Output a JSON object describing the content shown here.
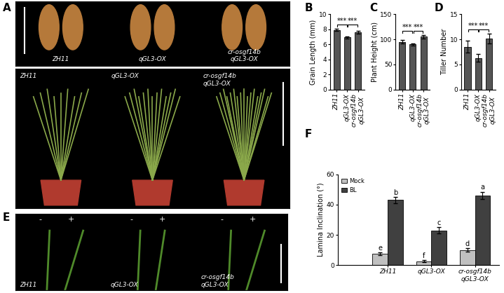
{
  "chart_data": [
    {
      "type": "bar",
      "panel": "B",
      "y_label": "Grain Length (mm)",
      "categories": [
        "ZH11",
        "qGL3-OX",
        "cr-osgf14b\nqGL3-OX"
      ],
      "values": [
        7.9,
        6.9,
        7.6
      ],
      "errors": [
        0.15,
        0.15,
        0.15
      ],
      "color": "#555555",
      "ylim": [
        0,
        10
      ],
      "yticks": [
        0,
        2,
        4,
        6,
        8,
        10
      ],
      "significance": [
        {
          "pair": [
            0,
            1
          ],
          "label": "***"
        },
        {
          "pair": [
            1,
            2
          ],
          "label": "***"
        }
      ]
    },
    {
      "type": "bar",
      "panel": "C",
      "y_label": "Plant Height (cm)",
      "categories": [
        "ZH11",
        "qGL3-OX",
        "cr-osgf14b\nqGL3-OX"
      ],
      "values": [
        95,
        90,
        105
      ],
      "errors": [
        3,
        2,
        3
      ],
      "color": "#555555",
      "ylim": [
        0,
        150
      ],
      "yticks": [
        0,
        50,
        100,
        150
      ],
      "significance": [
        {
          "pair": [
            0,
            1
          ],
          "label": "***"
        },
        {
          "pair": [
            1,
            2
          ],
          "label": "***"
        }
      ]
    },
    {
      "type": "bar",
      "panel": "D",
      "y_label": "Tiller Number",
      "categories": [
        "ZH11",
        "qGL3-OX",
        "cr-osgf14b\nqGL3-OX"
      ],
      "values": [
        8.5,
        6.3,
        10.1
      ],
      "errors": [
        1.2,
        0.8,
        1.0
      ],
      "color": "#555555",
      "ylim": [
        0,
        15
      ],
      "yticks": [
        0,
        5,
        10,
        15
      ],
      "significance": [
        {
          "pair": [
            0,
            1
          ],
          "label": "***"
        },
        {
          "pair": [
            1,
            2
          ],
          "label": "***"
        }
      ]
    },
    {
      "type": "bar",
      "panel": "F",
      "y_label": "Lamina Inclination (°)",
      "categories": [
        "ZH11",
        "qGL3-OX",
        "cr-osgf14b\nqGL3-OX"
      ],
      "series": [
        {
          "name": "Mock",
          "color": "#c0c0c0",
          "values": [
            7.5,
            2.5,
            10
          ],
          "errors": [
            1.0,
            0.7,
            1.2
          ],
          "letters": [
            "e",
            "f",
            "d"
          ]
        },
        {
          "name": "BL",
          "color": "#404040",
          "values": [
            43,
            23,
            46
          ],
          "errors": [
            2.0,
            2.0,
            2.5
          ],
          "letters": [
            "b",
            "c",
            "a"
          ]
        }
      ],
      "ylim": [
        0,
        60
      ],
      "yticks": [
        0,
        20,
        40,
        60
      ],
      "legend": "upper left"
    }
  ],
  "photo_panels": [
    {
      "panel": "A",
      "rows": [
        {
          "labels": [
            "ZH11",
            "qGL3-OX",
            "cr-osgf14b\nqGL3-OX"
          ]
        },
        {
          "labels": [
            "ZH11",
            "qGL3-OX",
            "cr-osgf14b\nqGL3-OX"
          ]
        }
      ]
    },
    {
      "panel": "E",
      "labels": [
        "ZH11",
        "qGL3-OX",
        "cr-osgf14b\nqGL3-OX"
      ],
      "treatments": [
        "-",
        "+"
      ]
    }
  ]
}
